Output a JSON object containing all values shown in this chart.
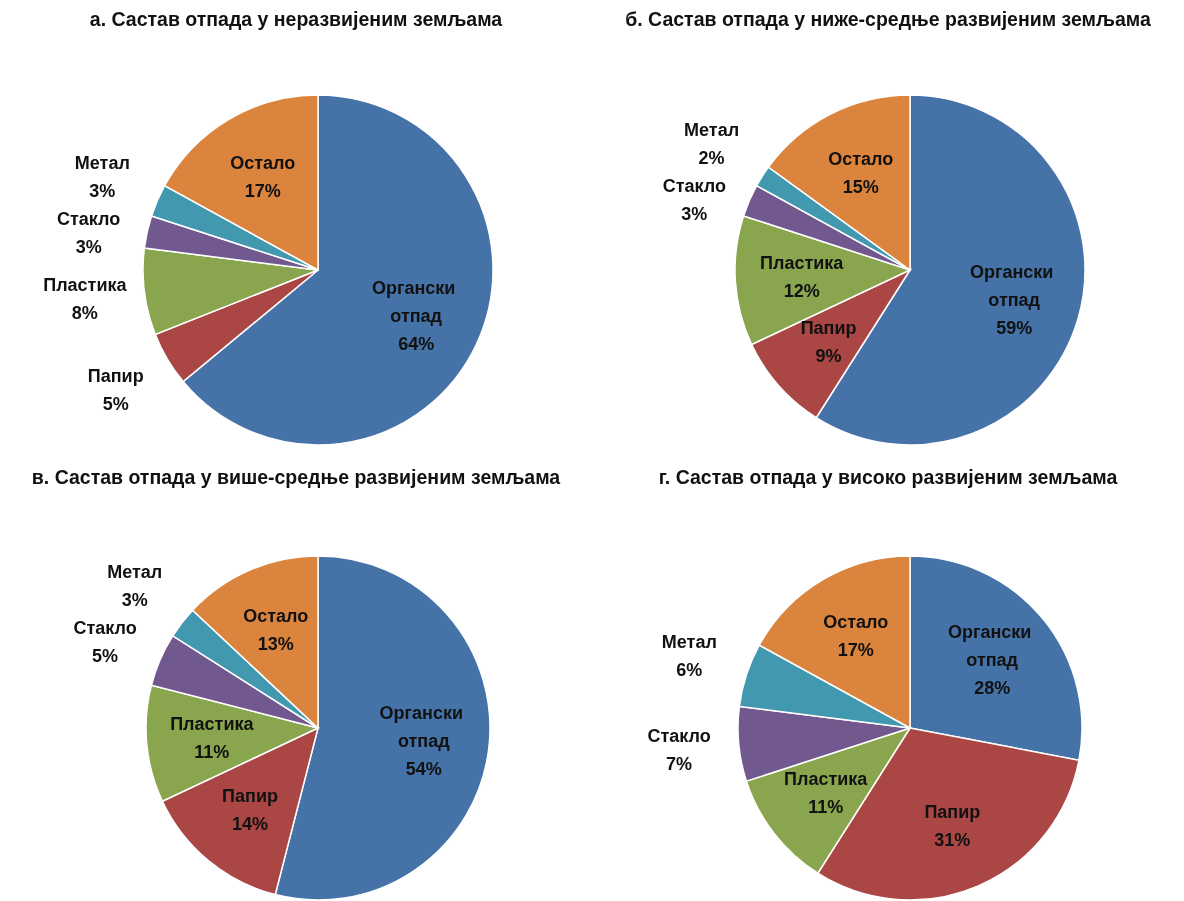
{
  "chart_data": [
    {
      "type": "pie",
      "title": "а. Састав отпада у неразвијеним земљама",
      "categories": [
        "Органски отпад",
        "Папир",
        "Пластика",
        "Стакло",
        "Метал",
        "Остало"
      ],
      "values": [
        64,
        5,
        8,
        3,
        3,
        17
      ],
      "value_labels": [
        "64%",
        "5%",
        "8%",
        "3%",
        "3%",
        "17%"
      ],
      "colors": [
        "#4572a7",
        "#aa4643",
        "#89a54e",
        "#71588f",
        "#4198af",
        "#db843d"
      ]
    },
    {
      "type": "pie",
      "title": "б. Састав отпада у ниже-средње развијеним земљама",
      "categories": [
        "Органски отпад",
        "Папир",
        "Пластика",
        "Стакло",
        "Метал",
        "Остало"
      ],
      "values": [
        59,
        9,
        12,
        3,
        2,
        15
      ],
      "value_labels": [
        "59%",
        "9%",
        "12%",
        "3%",
        "2%",
        "15%"
      ],
      "colors": [
        "#4572a7",
        "#aa4643",
        "#89a54e",
        "#71588f",
        "#4198af",
        "#db843d"
      ]
    },
    {
      "type": "pie",
      "title": "в. Састав отпада у више-средње развијеним земљама",
      "categories": [
        "Органски отпад",
        "Папир",
        "Пластика",
        "Стакло",
        "Метал",
        "Остало"
      ],
      "values": [
        54,
        14,
        11,
        5,
        3,
        13
      ],
      "value_labels": [
        "54%",
        "14%",
        "11%",
        "5%",
        "3%",
        "13%"
      ],
      "colors": [
        "#4572a7",
        "#aa4643",
        "#89a54e",
        "#71588f",
        "#4198af",
        "#db843d"
      ]
    },
    {
      "type": "pie",
      "title": "г. Састав отпада у високо развијеним земљама",
      "categories": [
        "Органски отпад",
        "Папир",
        "Пластика",
        "Стакло",
        "Метал",
        "Остало"
      ],
      "values": [
        28,
        31,
        11,
        7,
        6,
        17
      ],
      "value_labels": [
        "28%",
        "31%",
        "11%",
        "7%",
        "6%",
        "17%"
      ],
      "colors": [
        "#4572a7",
        "#aa4643",
        "#89a54e",
        "#71588f",
        "#4198af",
        "#db843d"
      ]
    }
  ]
}
